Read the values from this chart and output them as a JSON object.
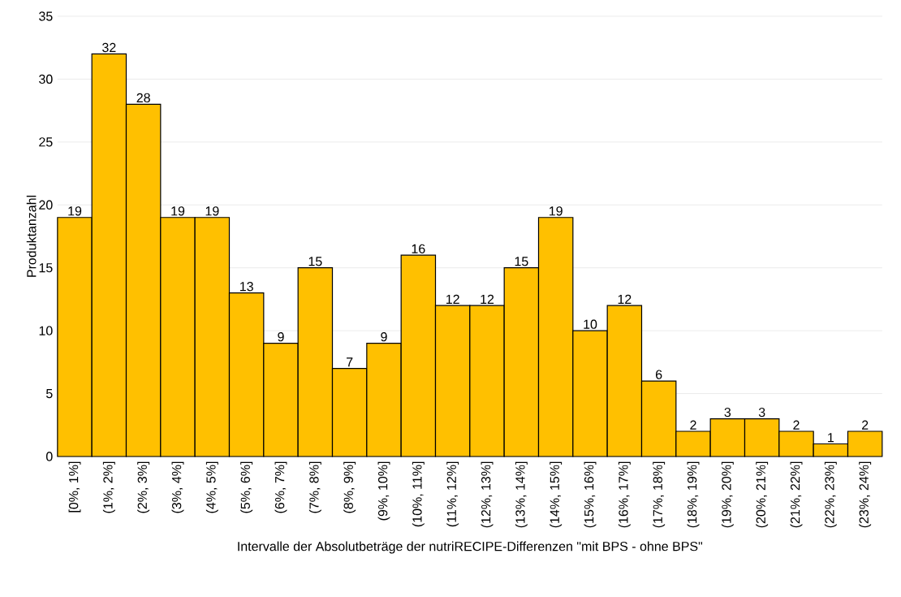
{
  "chart_data": {
    "type": "bar",
    "xlabel": "Intervalle der Absolutbeträge der nutriRECIPE-Differenzen \"mit BPS - ohne BPS\"",
    "ylabel": "Produktanzahl",
    "categories": [
      "[0%, 1%]",
      "(1%, 2%]",
      "(2%, 3%]",
      "(3%, 4%]",
      "(4%, 5%]",
      "(5%, 6%]",
      "(6%, 7%]",
      "(7%, 8%]",
      "(8%, 9%]",
      "(9%, 10%]",
      "(10%, 11%]",
      "(11%, 12%]",
      "(12%, 13%]",
      "(13%, 14%]",
      "(14%, 15%]",
      "(15%, 16%]",
      "(16%, 17%]",
      "(17%, 18%]",
      "(18%, 19%]",
      "(19%, 20%]",
      "(20%, 21%]",
      "(21%, 22%]",
      "(22%, 23%]",
      "(23%, 24%]"
    ],
    "values": [
      19,
      32,
      28,
      19,
      19,
      13,
      9,
      15,
      7,
      9,
      16,
      12,
      12,
      15,
      19,
      10,
      12,
      6,
      2,
      3,
      3,
      2,
      1,
      2
    ],
    "color": "#ffc000",
    "ylim": [
      0,
      35
    ],
    "yticks": [
      0,
      5,
      10,
      15,
      20,
      25,
      30,
      35
    ],
    "grid": "y",
    "data_labels": true
  }
}
